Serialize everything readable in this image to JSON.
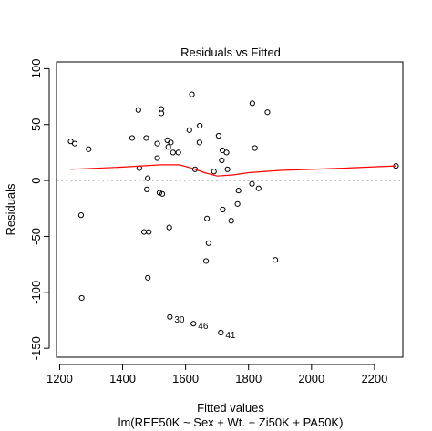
{
  "chart_data": {
    "type": "scatter",
    "title": "Residuals vs Fitted",
    "xlabel": "Fitted values",
    "subtitle": "lm(REE50K ~ Sex + Wt. + Zi50K + PA50K)",
    "ylabel": "Residuals",
    "xlim": [
      1190,
      2290
    ],
    "ylim": [
      -158,
      106
    ],
    "x_ticks": [
      1200,
      1400,
      1600,
      1800,
      2000,
      2200
    ],
    "y_ticks": [
      -150,
      -100,
      -50,
      0,
      50,
      100
    ],
    "reference_line": 0,
    "points": [
      {
        "x": 1235,
        "y": 35
      },
      {
        "x": 1248,
        "y": 33
      },
      {
        "x": 1268,
        "y": -31
      },
      {
        "x": 1270,
        "y": -105
      },
      {
        "x": 1292,
        "y": 28
      },
      {
        "x": 1450,
        "y": 63
      },
      {
        "x": 1430,
        "y": 38
      },
      {
        "x": 1453,
        "y": 11
      },
      {
        "x": 1468,
        "y": -46
      },
      {
        "x": 1475,
        "y": 38
      },
      {
        "x": 1477,
        "y": -8
      },
      {
        "x": 1480,
        "y": 2
      },
      {
        "x": 1480,
        "y": -87
      },
      {
        "x": 1483,
        "y": -46
      },
      {
        "x": 1510,
        "y": 20
      },
      {
        "x": 1510,
        "y": 33
      },
      {
        "x": 1517,
        "y": -11
      },
      {
        "x": 1523,
        "y": 64
      },
      {
        "x": 1523,
        "y": 60
      },
      {
        "x": 1526,
        "y": -12
      },
      {
        "x": 1542,
        "y": 36
      },
      {
        "x": 1545,
        "y": 30
      },
      {
        "x": 1548,
        "y": -42
      },
      {
        "x": 1553,
        "y": 34
      },
      {
        "x": 1560,
        "y": 25
      },
      {
        "x": 1577,
        "y": 25
      },
      {
        "x": 1612,
        "y": 45
      },
      {
        "x": 1620,
        "y": 77
      },
      {
        "x": 1630,
        "y": 10
      },
      {
        "x": 1644,
        "y": 34
      },
      {
        "x": 1645,
        "y": 49
      },
      {
        "x": 1665,
        "y": -72
      },
      {
        "x": 1673,
        "y": -56
      },
      {
        "x": 1668,
        "y": -34
      },
      {
        "x": 1690,
        "y": 8
      },
      {
        "x": 1705,
        "y": 40
      },
      {
        "x": 1715,
        "y": 18
      },
      {
        "x": 1717,
        "y": 27
      },
      {
        "x": 1718,
        "y": -26
      },
      {
        "x": 1730,
        "y": 25
      },
      {
        "x": 1733,
        "y": 10
      },
      {
        "x": 1745,
        "y": -36
      },
      {
        "x": 1765,
        "y": -21
      },
      {
        "x": 1768,
        "y": -9
      },
      {
        "x": 1811,
        "y": -3
      },
      {
        "x": 1812,
        "y": 69
      },
      {
        "x": 1820,
        "y": 29
      },
      {
        "x": 1832,
        "y": -7
      },
      {
        "x": 1860,
        "y": 61
      },
      {
        "x": 1885,
        "y": -71
      },
      {
        "x": 2268,
        "y": 13
      },
      {
        "x": 1550,
        "y": -122,
        "label": "30"
      },
      {
        "x": 1625,
        "y": -128,
        "label": "46"
      },
      {
        "x": 1712,
        "y": -136,
        "label": "41"
      }
    ],
    "smooth_line": {
      "color": "#ff0000",
      "x": [
        1235,
        1400,
        1520,
        1580,
        1620,
        1660,
        1700,
        1750,
        1800,
        1900,
        2100,
        2268
      ],
      "y": [
        10,
        12,
        14,
        14,
        11,
        7,
        4,
        5,
        7,
        9,
        11,
        13
      ]
    },
    "point_color": "#000000",
    "reference_line_color": "#aaaaaa"
  }
}
